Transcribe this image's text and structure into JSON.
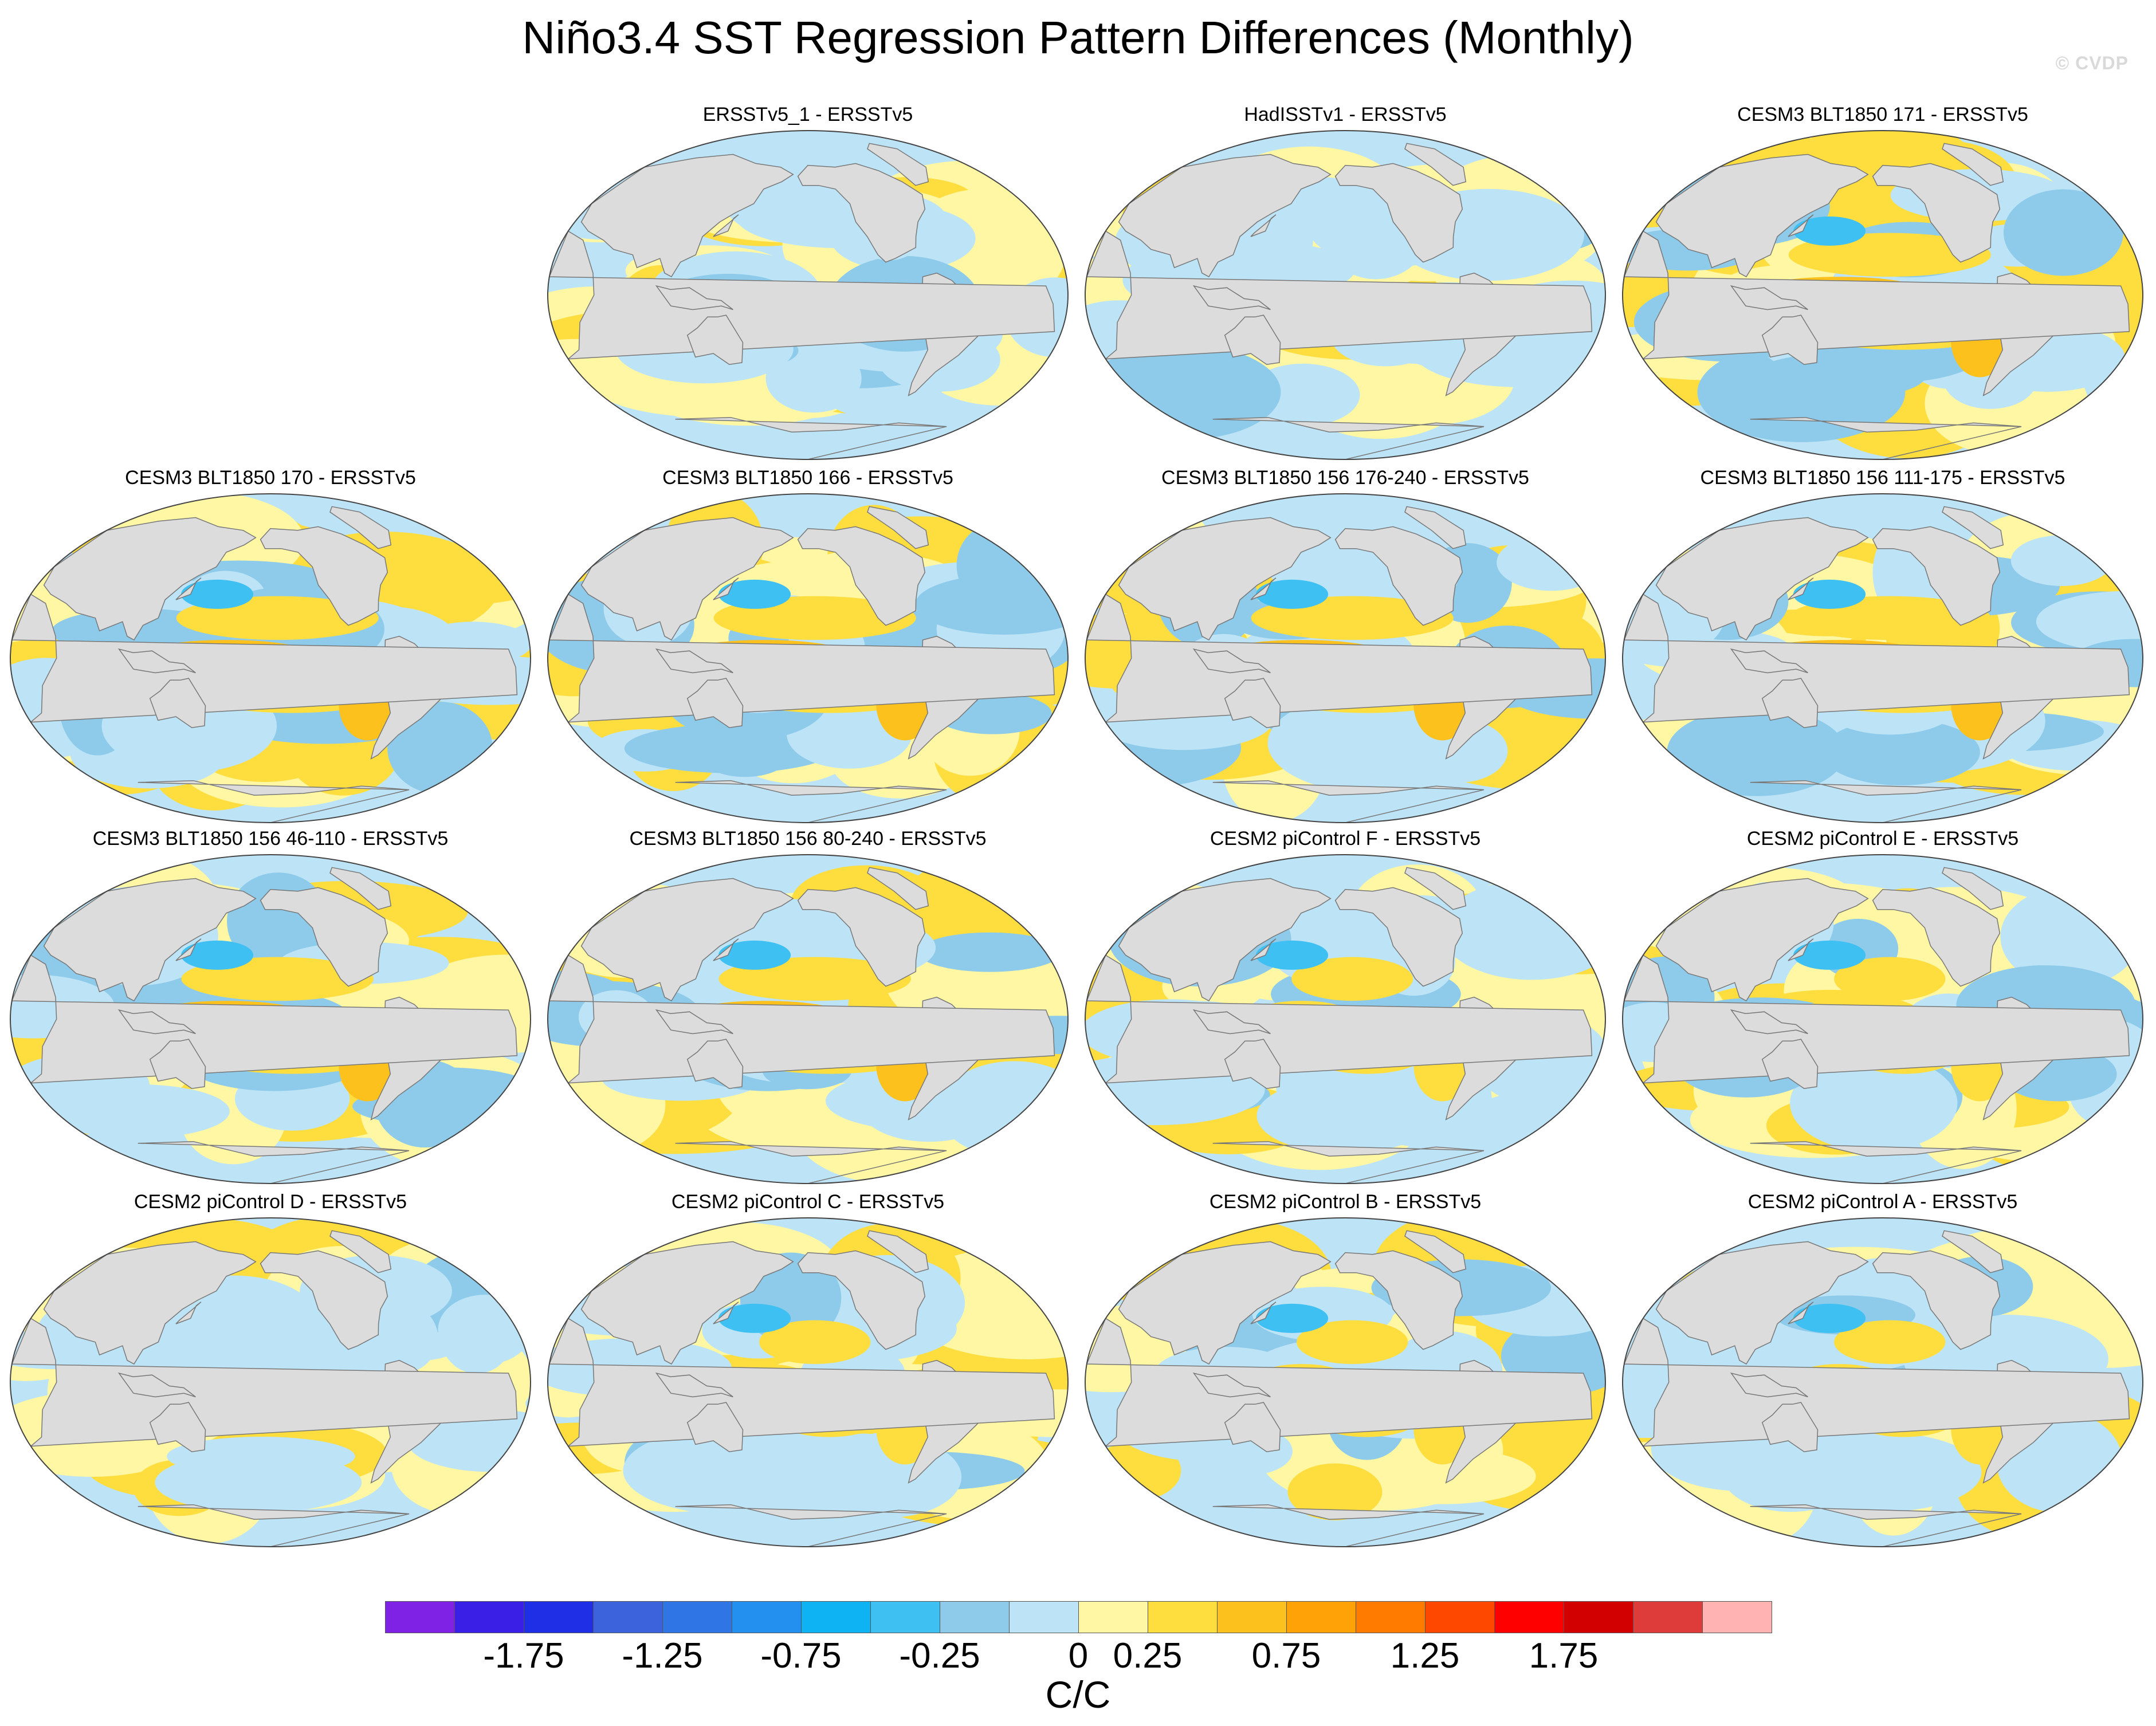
{
  "title": "Niño3.4 SST Regression Pattern Differences (Monthly)",
  "watermark": "© CVDP",
  "panels": [
    {
      "label": "ERSSTv5_1 - ERSSTv5",
      "strength": 0.45
    },
    {
      "label": "HadISSTv1 - ERSSTv5",
      "strength": 0.35
    },
    {
      "label": "CESM3 BLT1850 171 - ERSSTv5",
      "strength": 1.0
    },
    {
      "label": "CESM3 BLT1850 170 - ERSSTv5",
      "strength": 1.0
    },
    {
      "label": "CESM3 BLT1850 166 - ERSSTv5",
      "strength": 1.0
    },
    {
      "label": "CESM3 BLT1850 156 176-240 - ERSSTv5",
      "strength": 1.0
    },
    {
      "label": "CESM3 BLT1850 156 111-175 - ERSSTv5",
      "strength": 1.0
    },
    {
      "label": "CESM3 BLT1850 156 46-110 - ERSSTv5",
      "strength": 0.95
    },
    {
      "label": "CESM3 BLT1850 156 80-240 - ERSSTv5",
      "strength": 0.95
    },
    {
      "label": "CESM2 piControl F - ERSSTv5",
      "strength": 0.6
    },
    {
      "label": "CESM2 piControl E - ERSSTv5",
      "strength": 0.55
    },
    {
      "label": "CESM2 piControl D - ERSSTv5",
      "strength": 0.5
    },
    {
      "label": "CESM2 piControl C - ERSSTv5",
      "strength": 0.55
    },
    {
      "label": "CESM2 piControl B - ERSSTv5",
      "strength": 0.55
    },
    {
      "label": "CESM2 piControl A - ERSSTv5",
      "strength": 0.55
    }
  ],
  "colorbar": {
    "colors": [
      "#7f22e6",
      "#3a1fe6",
      "#1f2fe6",
      "#3c62dc",
      "#2f75e6",
      "#2390f0",
      "#0db3f2",
      "#3fc0f2",
      "#8ecbea",
      "#bde3f6",
      "#fff7a3",
      "#fedd3f",
      "#fcc11c",
      "#fea207",
      "#fe7b00",
      "#fe4800",
      "#fe0000",
      "#d30000",
      "#de3b3b",
      "#ffb3b3"
    ],
    "tick_labels": [
      "-1.75",
      "-1.25",
      "-0.75",
      "-0.25",
      "0",
      "0.25",
      "0.75",
      "1.25",
      "1.75"
    ],
    "unit": "C/C",
    "land_color": "#dcdcdc",
    "ocean_default": "#bde3f6"
  }
}
